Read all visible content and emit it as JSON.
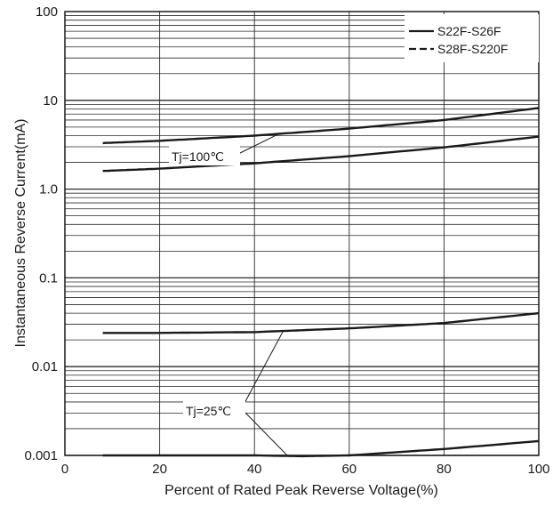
{
  "chart_data": {
    "type": "line",
    "title": "",
    "xlabel": "Percent of Rated Peak Reverse Voltage(%)",
    "ylabel": "Instantaneous Reverse Current(mA)",
    "xlim": [
      0,
      100
    ],
    "ylim": [
      0.001,
      100
    ],
    "yscale": "log",
    "grid": true,
    "x_ticks": [
      0,
      20,
      40,
      60,
      80,
      100
    ],
    "x_tick_labels": [
      "0",
      "20",
      "40",
      "60",
      "80",
      "100"
    ],
    "y_ticks": [
      0.001,
      0.01,
      0.1,
      1,
      10,
      100
    ],
    "y_tick_labels": [
      "0.001",
      "0.01",
      "0.1",
      "1.0",
      "10",
      "100"
    ],
    "legend": {
      "position": "top-right",
      "entries": [
        {
          "label": "S22F-S26F",
          "style": "solid"
        },
        {
          "label": "S28F-S220F",
          "style": "dashed"
        }
      ]
    },
    "series": [
      {
        "group": "Tj=100℃",
        "style": "solid",
        "x": [
          8,
          20,
          40,
          60,
          80,
          100
        ],
        "y": [
          3.3,
          3.5,
          4.0,
          4.8,
          6.0,
          8.2
        ]
      },
      {
        "group": "Tj=100℃",
        "style": "solid",
        "x": [
          8,
          20,
          40,
          60,
          80,
          100
        ],
        "y": [
          1.6,
          1.7,
          1.95,
          2.35,
          2.95,
          3.9
        ]
      },
      {
        "group": "Tj=25℃",
        "style": "solid",
        "x": [
          8,
          20,
          40,
          60,
          80,
          100
        ],
        "y": [
          0.024,
          0.024,
          0.0245,
          0.027,
          0.031,
          0.04
        ]
      },
      {
        "group": "Tj=25℃",
        "style": "solid",
        "x": [
          8,
          20,
          40,
          50,
          60,
          80,
          100
        ],
        "y": [
          0.001,
          0.001,
          0.001,
          0.00098,
          0.001,
          0.00118,
          0.00145
        ]
      }
    ],
    "annotations": [
      {
        "text": "Tj=100℃",
        "points_to": "Tj=100℃ curves"
      },
      {
        "text": "Tj=25℃",
        "points_to": "Tj=25℃ curves"
      }
    ],
    "colors": {
      "line": "#1a1a1a",
      "grid": "#2a2a2a",
      "background": "#ffffff"
    }
  }
}
